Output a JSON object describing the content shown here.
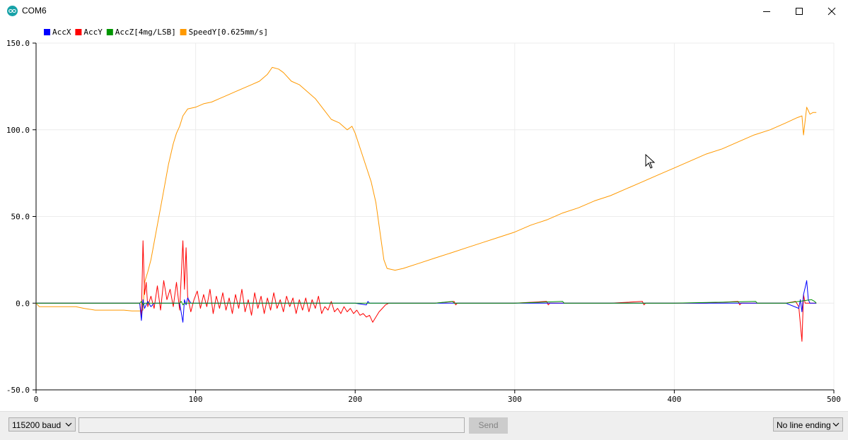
{
  "window": {
    "title": "COM6",
    "buttons": {
      "minimize": "minimize",
      "maximize": "maximize",
      "close": "close"
    }
  },
  "legend": [
    {
      "label": "AccX",
      "color": "#0000ff"
    },
    {
      "label": "AccY",
      "color": "#ff0000"
    },
    {
      "label": "AccZ[4mg/LSB]",
      "color": "#009600"
    },
    {
      "label": "SpeedY[0.625mm/s]",
      "color": "#ff9900"
    }
  ],
  "chart_data": {
    "type": "line",
    "xlim": [
      0,
      500
    ],
    "ylim": [
      -50,
      150
    ],
    "x_ticks": [
      "0",
      "100",
      "200",
      "300",
      "400",
      "500"
    ],
    "y_ticks": [
      "-50.0",
      "0.0",
      "50.0",
      "100.0",
      "150.0"
    ],
    "grid": true,
    "legend_position": "top-left",
    "series": [
      {
        "name": "SpeedY[0.625mm/s]",
        "color": "#ff9900",
        "points": [
          [
            0,
            0
          ],
          [
            2,
            -2
          ],
          [
            15,
            -2
          ],
          [
            25,
            -2
          ],
          [
            30,
            -3
          ],
          [
            37,
            -4
          ],
          [
            45,
            -4
          ],
          [
            55,
            -4
          ],
          [
            60,
            -4.5
          ],
          [
            65,
            -4.5
          ],
          [
            67,
            -4
          ],
          [
            68,
            12
          ],
          [
            70,
            18
          ],
          [
            72,
            25
          ],
          [
            75,
            40
          ],
          [
            78,
            55
          ],
          [
            80,
            65
          ],
          [
            83,
            80
          ],
          [
            86,
            92
          ],
          [
            88,
            98
          ],
          [
            90,
            102
          ],
          [
            92,
            108
          ],
          [
            95,
            112
          ],
          [
            100,
            113
          ],
          [
            105,
            115
          ],
          [
            110,
            116
          ],
          [
            115,
            118
          ],
          [
            120,
            120
          ],
          [
            125,
            122
          ],
          [
            130,
            124
          ],
          [
            135,
            126
          ],
          [
            140,
            128
          ],
          [
            145,
            132
          ],
          [
            148,
            136
          ],
          [
            152,
            135
          ],
          [
            155,
            133
          ],
          [
            160,
            128
          ],
          [
            165,
            126
          ],
          [
            170,
            122
          ],
          [
            175,
            118
          ],
          [
            180,
            112
          ],
          [
            185,
            106
          ],
          [
            190,
            104
          ],
          [
            195,
            100
          ],
          [
            198,
            102
          ],
          [
            200,
            98
          ],
          [
            205,
            84
          ],
          [
            210,
            70
          ],
          [
            213,
            58
          ],
          [
            216,
            38
          ],
          [
            218,
            25
          ],
          [
            220,
            20
          ],
          [
            225,
            19
          ],
          [
            230,
            20
          ],
          [
            240,
            23
          ],
          [
            250,
            26
          ],
          [
            260,
            29
          ],
          [
            270,
            32
          ],
          [
            280,
            35
          ],
          [
            290,
            38
          ],
          [
            300,
            41
          ],
          [
            310,
            45
          ],
          [
            320,
            48
          ],
          [
            330,
            52
          ],
          [
            340,
            55
          ],
          [
            350,
            59
          ],
          [
            360,
            62
          ],
          [
            370,
            66
          ],
          [
            380,
            70
          ],
          [
            390,
            74
          ],
          [
            400,
            78
          ],
          [
            410,
            82
          ],
          [
            420,
            86
          ],
          [
            430,
            89
          ],
          [
            440,
            93
          ],
          [
            450,
            97
          ],
          [
            460,
            100
          ],
          [
            470,
            104
          ],
          [
            477,
            107
          ],
          [
            480,
            108
          ],
          [
            481,
            97
          ],
          [
            483,
            113
          ],
          [
            485,
            109
          ],
          [
            487,
            110
          ],
          [
            489,
            110
          ]
        ]
      },
      {
        "name": "AccY",
        "color": "#ff0000",
        "points": [
          [
            0,
            0
          ],
          [
            65,
            0
          ],
          [
            66,
            -8
          ],
          [
            67,
            36
          ],
          [
            68,
            5
          ],
          [
            69,
            12
          ],
          [
            70,
            -2
          ],
          [
            72,
            4
          ],
          [
            74,
            -3
          ],
          [
            76,
            10
          ],
          [
            78,
            -4
          ],
          [
            80,
            13
          ],
          [
            82,
            2
          ],
          [
            84,
            8
          ],
          [
            86,
            -2
          ],
          [
            88,
            12
          ],
          [
            90,
            -4
          ],
          [
            92,
            36
          ],
          [
            93,
            8
          ],
          [
            94,
            32
          ],
          [
            95,
            4
          ],
          [
            97,
            -5
          ],
          [
            99,
            2
          ],
          [
            101,
            7
          ],
          [
            103,
            -3
          ],
          [
            105,
            5
          ],
          [
            107,
            -2
          ],
          [
            109,
            8
          ],
          [
            111,
            -6
          ],
          [
            113,
            4
          ],
          [
            115,
            -3
          ],
          [
            117,
            6
          ],
          [
            119,
            -4
          ],
          [
            121,
            3
          ],
          [
            123,
            -6
          ],
          [
            125,
            5
          ],
          [
            127,
            -3
          ],
          [
            129,
            8
          ],
          [
            131,
            -5
          ],
          [
            133,
            2
          ],
          [
            135,
            -7
          ],
          [
            137,
            6
          ],
          [
            139,
            -3
          ],
          [
            141,
            4
          ],
          [
            143,
            -6
          ],
          [
            145,
            3
          ],
          [
            147,
            -4
          ],
          [
            149,
            6
          ],
          [
            151,
            -3
          ],
          [
            153,
            2
          ],
          [
            155,
            -5
          ],
          [
            157,
            4
          ],
          [
            159,
            -2
          ],
          [
            161,
            3
          ],
          [
            163,
            -6
          ],
          [
            165,
            2
          ],
          [
            167,
            -4
          ],
          [
            169,
            3
          ],
          [
            171,
            -5
          ],
          [
            173,
            2
          ],
          [
            175,
            -3
          ],
          [
            177,
            4
          ],
          [
            179,
            -6
          ],
          [
            181,
            -2
          ],
          [
            183,
            -4
          ],
          [
            185,
            1
          ],
          [
            187,
            -5
          ],
          [
            189,
            -3
          ],
          [
            191,
            -6
          ],
          [
            193,
            -2
          ],
          [
            195,
            -5
          ],
          [
            197,
            -3
          ],
          [
            199,
            -6
          ],
          [
            201,
            -4
          ],
          [
            203,
            -7
          ],
          [
            205,
            -6
          ],
          [
            207,
            -8
          ],
          [
            209,
            -7
          ],
          [
            211,
            -11
          ],
          [
            213,
            -8
          ],
          [
            215,
            -5
          ],
          [
            217,
            -3
          ],
          [
            219,
            -1
          ],
          [
            221,
            0
          ],
          [
            250,
            0
          ],
          [
            262,
            1
          ],
          [
            263,
            -1
          ],
          [
            264,
            0
          ],
          [
            300,
            0
          ],
          [
            320,
            1
          ],
          [
            321,
            -1
          ],
          [
            322,
            0
          ],
          [
            360,
            0
          ],
          [
            380,
            1
          ],
          [
            381,
            -1
          ],
          [
            382,
            0
          ],
          [
            420,
            0
          ],
          [
            440,
            1
          ],
          [
            441,
            -1
          ],
          [
            442,
            0
          ],
          [
            470,
            0
          ],
          [
            476,
            1
          ],
          [
            478,
            -2
          ],
          [
            480,
            -22
          ],
          [
            481,
            5
          ],
          [
            482,
            0
          ],
          [
            489,
            0
          ]
        ]
      },
      {
        "name": "AccX",
        "color": "#0000ff",
        "points": [
          [
            0,
            0
          ],
          [
            65,
            0
          ],
          [
            66,
            -10
          ],
          [
            67,
            2
          ],
          [
            68,
            -3
          ],
          [
            70,
            1
          ],
          [
            72,
            -2
          ],
          [
            74,
            0
          ],
          [
            90,
            0
          ],
          [
            92,
            -11
          ],
          [
            93,
            2
          ],
          [
            94,
            -1
          ],
          [
            95,
            3
          ],
          [
            97,
            0
          ],
          [
            200,
            0
          ],
          [
            207,
            -1
          ],
          [
            208,
            1
          ],
          [
            209,
            0
          ],
          [
            470,
            0
          ],
          [
            478,
            -3
          ],
          [
            479,
            2
          ],
          [
            480,
            -5
          ],
          [
            481,
            5
          ],
          [
            482,
            9
          ],
          [
            483,
            13
          ],
          [
            484,
            2
          ],
          [
            485,
            0
          ],
          [
            489,
            0
          ]
        ]
      },
      {
        "name": "AccZ[4mg/LSB]",
        "color": "#009600",
        "points": [
          [
            0,
            0
          ],
          [
            65,
            0
          ],
          [
            66,
            1
          ],
          [
            67,
            -1
          ],
          [
            68,
            0
          ],
          [
            90,
            0
          ],
          [
            91,
            1
          ],
          [
            92,
            -1
          ],
          [
            93,
            0
          ],
          [
            250,
            0
          ],
          [
            261,
            1
          ],
          [
            262,
            0
          ],
          [
            300,
            0
          ],
          [
            330,
            1
          ],
          [
            331,
            0
          ],
          [
            400,
            0
          ],
          [
            451,
            1
          ],
          [
            452,
            0
          ],
          [
            470,
            0
          ],
          [
            486,
            2
          ],
          [
            488,
            1
          ],
          [
            489,
            0
          ]
        ]
      }
    ]
  },
  "bottom": {
    "baud": "115200 baud",
    "input_value": "",
    "send": "Send",
    "line_ending": "No line ending"
  }
}
